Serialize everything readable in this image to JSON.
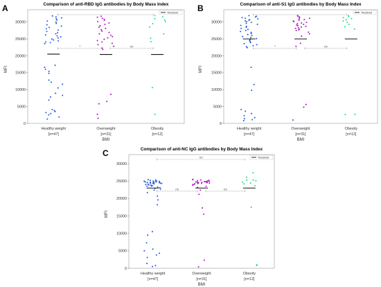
{
  "colors": {
    "healthy": "#2b5fe0",
    "overweight": "#b21cc9",
    "obesity": "#22e08a",
    "threshold": "#111111",
    "bracket": "#888888",
    "frame": "#999999"
  },
  "chart_data": [
    {
      "type": "scatter",
      "panel": "A",
      "title": "Comparison of anti-RBD IgG antibodies by Body Mass Index",
      "xlabel": "BMI",
      "ylabel": "MFI",
      "ylim": [
        0,
        32000
      ],
      "yticks": [
        0,
        5000,
        10000,
        15000,
        20000,
        25000,
        30000
      ],
      "ytick_labels": [
        "0",
        "5000",
        "10000",
        "15000",
        "20000",
        "25000",
        "30000"
      ],
      "categories": [
        {
          "label": "Healthy weight",
          "n": "[n=47]"
        },
        {
          "label": "Overweight",
          "n": "[n=31]"
        },
        {
          "label": "Obesity",
          "n": "[n=12]"
        }
      ],
      "legend": [
        "Threshold"
      ],
      "threshold": [
        20500,
        20400,
        20400
      ],
      "significance": [
        {
          "from": 0,
          "to": 1,
          "y": 22200,
          "label": "*"
        },
        {
          "from": 1,
          "to": 2,
          "y": 22200,
          "label": "ns"
        },
        {
          "from": 0,
          "to": 2,
          "y": 32200,
          "label": ""
        }
      ],
      "series": [
        {
          "group": 0,
          "values": [
            31800,
            31500,
            31200,
            30900,
            30600,
            30300,
            30000,
            29600,
            29200,
            28800,
            28400,
            28000,
            27600,
            27200,
            26800,
            26500,
            26200,
            25900,
            25600,
            25300,
            25000,
            24700,
            24400,
            24100,
            23900,
            23600,
            17200,
            16600,
            16000,
            15400,
            14800,
            12800,
            12200,
            11600,
            10500,
            8900,
            8300,
            7800,
            6900,
            4100,
            3800,
            3500,
            3200,
            2900,
            2500,
            1900,
            1300
          ]
        },
        {
          "group": 1,
          "values": [
            31700,
            31400,
            31100,
            30800,
            30500,
            30100,
            29700,
            29300,
            28900,
            28500,
            28100,
            27700,
            27300,
            26900,
            26500,
            26100,
            25700,
            25300,
            24900,
            24500,
            24100,
            23700,
            23300,
            22800,
            22300,
            21900,
            8600,
            6500,
            5800,
            2700,
            1500
          ]
        },
        {
          "group": 2,
          "values": [
            31900,
            31500,
            31000,
            30600,
            30100,
            29500,
            28500,
            26500,
            25200,
            24200,
            10600,
            2700
          ]
        }
      ]
    },
    {
      "type": "scatter",
      "panel": "B",
      "title": "Comparison of anti-S1 IgG antibodies by Body Mass Index",
      "xlabel": "BMI",
      "ylabel": "MFI",
      "ylim": [
        0,
        32000
      ],
      "yticks": [
        0,
        5000,
        10000,
        15000,
        20000,
        25000,
        30000
      ],
      "ytick_labels": [
        "0",
        "5000",
        "10000",
        "15000",
        "20000",
        "25000",
        "30000"
      ],
      "categories": [
        {
          "label": "Healthy weight",
          "n": "[n=47]"
        },
        {
          "label": "Overweight",
          "n": "[n=31]"
        },
        {
          "label": "Obesity",
          "n": "[n=12]"
        }
      ],
      "legend": [
        "Threshold"
      ],
      "threshold": [
        25000,
        25000,
        25000
      ],
      "significance": [
        {
          "from": 0,
          "to": 1,
          "y": 22200,
          "label": "*"
        },
        {
          "from": 1,
          "to": 2,
          "y": 22200,
          "label": "ns"
        },
        {
          "from": 0,
          "to": 2,
          "y": 32200,
          "label": ""
        }
      ],
      "series": [
        {
          "group": 0,
          "values": [
            31900,
            31700,
            31500,
            31300,
            31100,
            30900,
            30700,
            30500,
            30300,
            30100,
            29900,
            29600,
            29300,
            29000,
            28700,
            28400,
            28100,
            27800,
            27500,
            27200,
            26900,
            26600,
            26300,
            26000,
            25700,
            25400,
            25100,
            24800,
            24500,
            24200,
            23900,
            23600,
            23300,
            23000,
            22700,
            22400,
            16600,
            11500,
            9800,
            4100,
            3600,
            2900,
            2300,
            1700,
            1400,
            1100,
            800
          ]
        },
        {
          "group": 1,
          "values": [
            31900,
            31700,
            31500,
            31300,
            31100,
            30900,
            30700,
            30500,
            30300,
            30100,
            29900,
            29700,
            29500,
            29300,
            29100,
            28900,
            28700,
            28500,
            28300,
            28100,
            27900,
            27700,
            27500,
            27000,
            26500,
            25800,
            23700,
            22800,
            5600,
            4800,
            1000
          ]
        },
        {
          "group": 2,
          "values": [
            31900,
            31600,
            31300,
            31000,
            30700,
            30300,
            29900,
            29300,
            28600,
            27900,
            2700,
            2600
          ]
        }
      ]
    },
    {
      "type": "scatter",
      "panel": "C",
      "title": "Comparison of anti-NC IgG antibodies by Body Mass Index",
      "xlabel": "BMI",
      "ylabel": "MFI",
      "ylim": [
        0,
        31000
      ],
      "yticks": [
        0,
        5000,
        10000,
        15000,
        20000,
        25000,
        30000
      ],
      "ytick_labels": [
        "0",
        "5000",
        "10000",
        "15000",
        "20000",
        "25000",
        "30000"
      ],
      "categories": [
        {
          "label": "Healthy weight",
          "n": "[n=47]"
        },
        {
          "label": "Overweight",
          "n": "[n=31]"
        },
        {
          "label": "Obesity",
          "n": "[n=12]"
        }
      ],
      "legend": [
        "Threshold"
      ],
      "threshold": [
        23000,
        23000,
        23000
      ],
      "significance": [
        {
          "from": 0,
          "to": 1,
          "y": 22100,
          "label": "ns"
        },
        {
          "from": 1,
          "to": 2,
          "y": 22100,
          "label": "ns"
        },
        {
          "from": 0,
          "to": 2,
          "y": 31200,
          "label": "ns"
        }
      ],
      "series": [
        {
          "group": 0,
          "values": [
            25400,
            25300,
            25200,
            25100,
            25000,
            24950,
            24900,
            24850,
            24800,
            24750,
            24700,
            24650,
            24600,
            24550,
            24500,
            24450,
            24400,
            24350,
            24300,
            24200,
            24100,
            24000,
            23900,
            23800,
            23700,
            23600,
            23500,
            23300,
            23100,
            22900,
            22700,
            22400,
            21700,
            20700,
            19600,
            18200,
            10500,
            9500,
            7300,
            5500,
            5000,
            4300,
            3800,
            3100,
            1400,
            800,
            500
          ]
        },
        {
          "group": 1,
          "values": [
            25500,
            25400,
            25300,
            25200,
            25100,
            25000,
            24950,
            24900,
            24850,
            24800,
            24750,
            24700,
            24650,
            24600,
            24550,
            24500,
            24450,
            24400,
            24300,
            24200,
            24100,
            24000,
            23800,
            23500,
            23200,
            22400,
            21200,
            17300,
            15500,
            2300,
            400
          ]
        },
        {
          "group": 2,
          "values": [
            27400,
            26100,
            25300,
            25300,
            25100,
            24700,
            24400,
            24200,
            23700,
            17500,
            1000,
            800
          ]
        }
      ]
    }
  ]
}
